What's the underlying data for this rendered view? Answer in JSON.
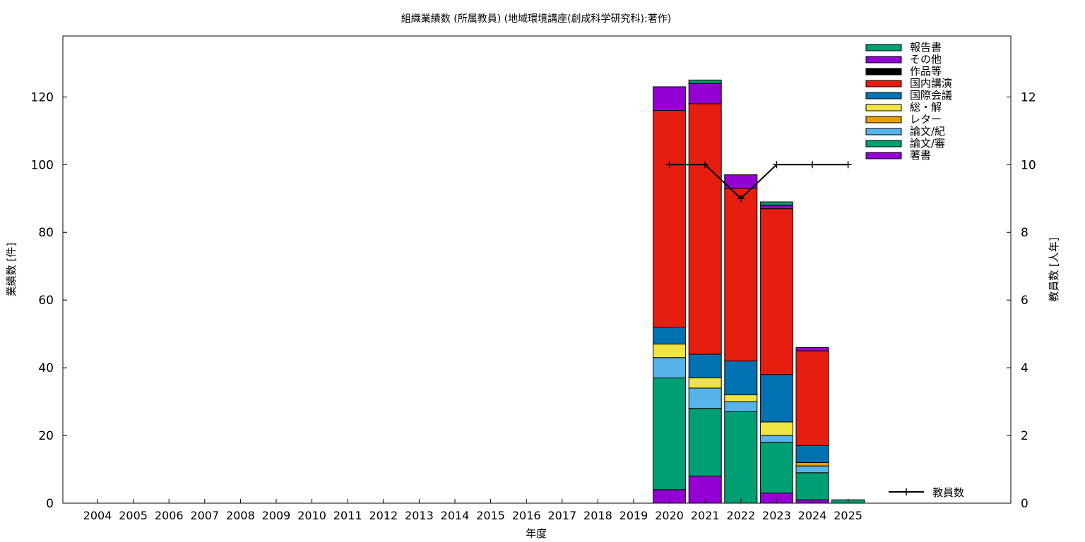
{
  "chart_data": {
    "type": "bar",
    "title": "組織業績数 (所属教員) (地域環境講座(創成科学研究科):著作)",
    "xlabel": "年度",
    "ylabel": "業績数 [件]",
    "y2label": "教員数 [人年]",
    "categories": [
      "2004",
      "2005",
      "2006",
      "2007",
      "2008",
      "2009",
      "2010",
      "2011",
      "2012",
      "2013",
      "2014",
      "2015",
      "2016",
      "2017",
      "2018",
      "2019",
      "2020",
      "2021",
      "2022",
      "2023",
      "2024",
      "2025"
    ],
    "ylim": [
      0,
      138
    ],
    "y2lim": [
      0,
      13.8
    ],
    "yticks": [
      0,
      20,
      40,
      60,
      80,
      100,
      120
    ],
    "y2ticks": [
      0,
      2,
      4,
      6,
      8,
      10,
      12
    ],
    "stacked": true,
    "legend_position": "top-right",
    "series": [
      {
        "name": "著書",
        "color": "#9400d3",
        "values": [
          0,
          0,
          0,
          0,
          0,
          0,
          0,
          0,
          0,
          0,
          0,
          0,
          0,
          0,
          0,
          0,
          4,
          8,
          0,
          3,
          1,
          0
        ]
      },
      {
        "name": "論文/審",
        "color": "#009e73",
        "values": [
          0,
          0,
          0,
          0,
          0,
          0,
          0,
          0,
          0,
          0,
          0,
          0,
          0,
          0,
          0,
          0,
          33,
          20,
          27,
          15,
          8,
          1
        ]
      },
      {
        "name": "論文/紀",
        "color": "#56b4e9",
        "values": [
          0,
          0,
          0,
          0,
          0,
          0,
          0,
          0,
          0,
          0,
          0,
          0,
          0,
          0,
          0,
          0,
          6,
          6,
          3,
          2,
          2,
          0
        ]
      },
      {
        "name": "レター",
        "color": "#e69f00",
        "values": [
          0,
          0,
          0,
          0,
          0,
          0,
          0,
          0,
          0,
          0,
          0,
          0,
          0,
          0,
          0,
          0,
          0,
          0,
          0,
          0,
          1,
          0
        ]
      },
      {
        "name": "総・解",
        "color": "#f0e442",
        "values": [
          0,
          0,
          0,
          0,
          0,
          0,
          0,
          0,
          0,
          0,
          0,
          0,
          0,
          0,
          0,
          0,
          4,
          3,
          2,
          4,
          0,
          0
        ]
      },
      {
        "name": "国際会議",
        "color": "#0072b2",
        "values": [
          0,
          0,
          0,
          0,
          0,
          0,
          0,
          0,
          0,
          0,
          0,
          0,
          0,
          0,
          0,
          0,
          5,
          7,
          10,
          14,
          5,
          0
        ]
      },
      {
        "name": "国内講演",
        "color": "#e51e10",
        "values": [
          0,
          0,
          0,
          0,
          0,
          0,
          0,
          0,
          0,
          0,
          0,
          0,
          0,
          0,
          0,
          0,
          64,
          74,
          51,
          49,
          28,
          0
        ]
      },
      {
        "name": "作品等",
        "color": "#000000",
        "values": [
          0,
          0,
          0,
          0,
          0,
          0,
          0,
          0,
          0,
          0,
          0,
          0,
          0,
          0,
          0,
          0,
          0,
          0,
          0,
          0,
          0,
          0
        ]
      },
      {
        "name": "その他",
        "color": "#9400d3",
        "values": [
          0,
          0,
          0,
          0,
          0,
          0,
          0,
          0,
          0,
          0,
          0,
          0,
          0,
          0,
          0,
          0,
          7,
          6,
          4,
          1,
          1,
          0
        ]
      },
      {
        "name": "報告書",
        "color": "#009e73",
        "values": [
          0,
          0,
          0,
          0,
          0,
          0,
          0,
          0,
          0,
          0,
          0,
          0,
          0,
          0,
          0,
          0,
          0,
          1,
          0,
          1,
          0,
          0
        ]
      }
    ],
    "line_series": {
      "name": "教員数",
      "axis": "y2",
      "color": "#000000",
      "x": [
        "2020",
        "2021",
        "2022",
        "2023",
        "2024",
        "2025"
      ],
      "values": [
        10,
        10,
        9,
        10,
        10,
        10
      ]
    }
  }
}
